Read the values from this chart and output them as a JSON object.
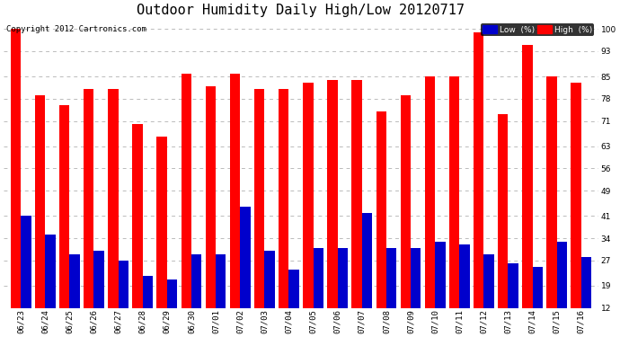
{
  "title": "Outdoor Humidity Daily High/Low 20120717",
  "copyright": "Copyright 2012 Cartronics.com",
  "dates": [
    "06/23",
    "06/24",
    "06/25",
    "06/26",
    "06/27",
    "06/28",
    "06/29",
    "06/30",
    "07/01",
    "07/02",
    "07/03",
    "07/04",
    "07/05",
    "07/06",
    "07/07",
    "07/08",
    "07/09",
    "07/10",
    "07/11",
    "07/12",
    "07/13",
    "07/14",
    "07/15",
    "07/16"
  ],
  "high": [
    100,
    79,
    76,
    81,
    81,
    70,
    66,
    86,
    82,
    86,
    81,
    81,
    83,
    84,
    84,
    74,
    79,
    85,
    85,
    99,
    73,
    95,
    85,
    83
  ],
  "low": [
    41,
    35,
    29,
    30,
    27,
    22,
    21,
    29,
    29,
    44,
    30,
    24,
    31,
    31,
    42,
    31,
    31,
    33,
    32,
    29,
    26,
    25,
    33,
    28
  ],
  "high_color": "#ff0000",
  "low_color": "#0000cc",
  "background_color": "#ffffff",
  "grid_color": "#bbbbbb",
  "yticks": [
    12,
    19,
    27,
    34,
    41,
    49,
    56,
    63,
    71,
    78,
    85,
    93,
    100
  ],
  "ylim": [
    12,
    103
  ],
  "ymin": 12,
  "legend_low_label": "Low  (%)",
  "legend_high_label": "High  (%)",
  "title_fontsize": 11,
  "copyright_fontsize": 6.5,
  "tick_fontsize": 6.5,
  "bar_width": 0.42
}
